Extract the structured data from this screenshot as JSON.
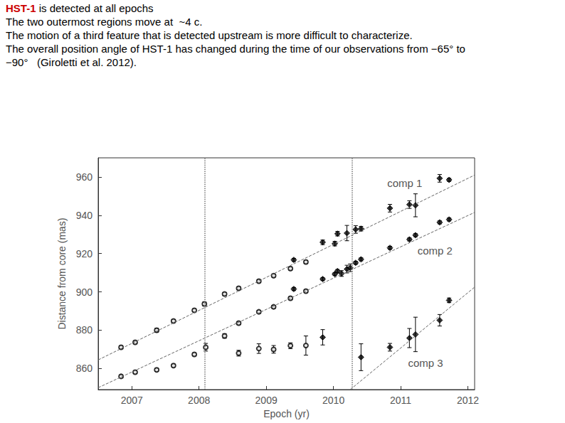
{
  "chart_data": {
    "type": "scatter",
    "title": "HST-1",
    "subtitle": [
      "is detected at all epochs",
      "The two outermost regions move at  ~4 c.",
      "The motion of a third feature that is detected upstream is more difficult to characterize.",
      "The overall position angle of HST-1 has changed during the time of our observations from −65° to",
      "−90°   (Giroletti et al. 2012)."
    ],
    "x_label": "Epoch (yr)",
    "y_label": "Distance from core (mas)",
    "xlim": [
      2006.5,
      2012.1
    ],
    "xticks": [
      2007,
      2008,
      2009,
      2010,
      2011,
      2012
    ],
    "ylim": [
      849,
      970
    ],
    "yticks": [
      860,
      880,
      900,
      920,
      940,
      960
    ],
    "grid": false,
    "vlines": {
      "x": [
        2008.08,
        2010.28
      ],
      "line_style": "dotted"
    },
    "series": [
      {
        "name": "comp 1",
        "color": "#000000",
        "label_x": 2011.06,
        "label_y": 956.7,
        "fit": {
          "x": [
            2006.5,
            2012.1
          ],
          "values": [
            864.5,
            961
          ],
          "line_style": "dashed"
        },
        "groups": [
          {
            "marker": "emptyCircle",
            "x": [
              2006.84,
              2007.05,
              2007.37,
              2007.62,
              2007.93,
              2008.08,
              2008.38,
              2008.59,
              2008.89,
              2009.11,
              2009.36,
              2009.59
            ],
            "values": [
              871.1,
              873.7,
              880.0,
              884.8,
              890.4,
              893.7,
              898.9,
              901.9,
              905.6,
              908.5,
              912.2,
              915.6
            ],
            "errors": [
              0.8,
              0.8,
              1.0,
              0.8,
              0.8,
              1.0,
              0.8,
              0.8,
              0.8,
              0.8,
              0.8,
              0.8
            ]
          },
          {
            "marker": "diamond",
            "x": [
              2009.41,
              2009.84,
              2010.02,
              2010.06,
              2010.2,
              2010.33,
              2010.41,
              2010.84,
              2011.13,
              2011.22,
              2011.58,
              2011.72
            ],
            "values": [
              916.7,
              925.9,
              925.2,
              930.4,
              930.7,
              932.6,
              933.0,
              943.7,
              945.6,
              945.2,
              959.3,
              958.5
            ],
            "errors": [
              0.8,
              1.2,
              1.2,
              1.2,
              4.0,
              2.0,
              1.2,
              2.0,
              2.0,
              6.0,
              2.0,
              0.8
            ]
          }
        ]
      },
      {
        "name": "comp 2",
        "color": "#000000",
        "label_x": 2011.51,
        "label_y": 921.5,
        "fit": {
          "x": [
            2006.5,
            2012.1
          ],
          "values": [
            850,
            941.5
          ],
          "line_style": "dashed"
        },
        "groups": [
          {
            "marker": "emptyCircle",
            "x": [
              2006.84,
              2007.05,
              2007.37,
              2007.62,
              2007.93,
              2008.1,
              2008.59,
              2008.89,
              2009.11,
              2009.36,
              2009.59
            ],
            "values": [
              855.9,
              858.1,
              859.3,
              861.5,
              867.4,
              871.1,
              883.7,
              889.6,
              892.2,
              896.7,
              900.4
            ],
            "errors": [
              0.8,
              0.8,
              0.8,
              0.8,
              0.8,
              2.0,
              0.8,
              0.8,
              0.8,
              0.8,
              0.8
            ]
          },
          {
            "marker": "diamond",
            "x": [
              2009.41,
              2009.84,
              2010.02,
              2010.06,
              2010.12,
              2010.2,
              2010.25,
              2010.33,
              2010.41,
              2010.84,
              2011.13,
              2011.22,
              2011.58,
              2011.72
            ],
            "values": [
              901.5,
              906.7,
              909.3,
              910.9,
              909.6,
              911.9,
              912.6,
              915.2,
              917.0,
              923.0,
              927.4,
              929.6,
              936.3,
              937.8
            ],
            "errors": [
              0.8,
              0.8,
              0.8,
              0.8,
              1.5,
              2.0,
              2.0,
              0.8,
              0.8,
              0.8,
              0.8,
              0.8,
              0.8,
              0.8
            ]
          }
        ]
      },
      {
        "name": "comp 3",
        "color": "#000000",
        "label_x": 2011.37,
        "label_y": 863,
        "fit": {
          "x": [
            2010.25,
            2012.1
          ],
          "values": [
            849,
            902.5
          ],
          "line_style": "dashed"
        },
        "groups": [
          {
            "marker": "emptyCircle",
            "x": [
              2008.38,
              2008.59,
              2008.89,
              2009.11,
              2009.36,
              2009.59
            ],
            "values": [
              877.0,
              868.0,
              870.4,
              870.0,
              871.9,
              872.0
            ],
            "errors": [
              1.2,
              1.5,
              2.5,
              2.0,
              1.5,
              5.0
            ]
          },
          {
            "marker": "diamond",
            "x": [
              2009.84,
              2010.41,
              2010.84,
              2011.13,
              2011.22,
              2011.58,
              2011.72
            ],
            "values": [
              876.3,
              865.9,
              871.1,
              875.9,
              877.8,
              885.2,
              895.6
            ],
            "errors": [
              4.0,
              7.0,
              2.0,
              5.0,
              9.0,
              3.0,
              1.2
            ]
          }
        ]
      }
    ]
  }
}
